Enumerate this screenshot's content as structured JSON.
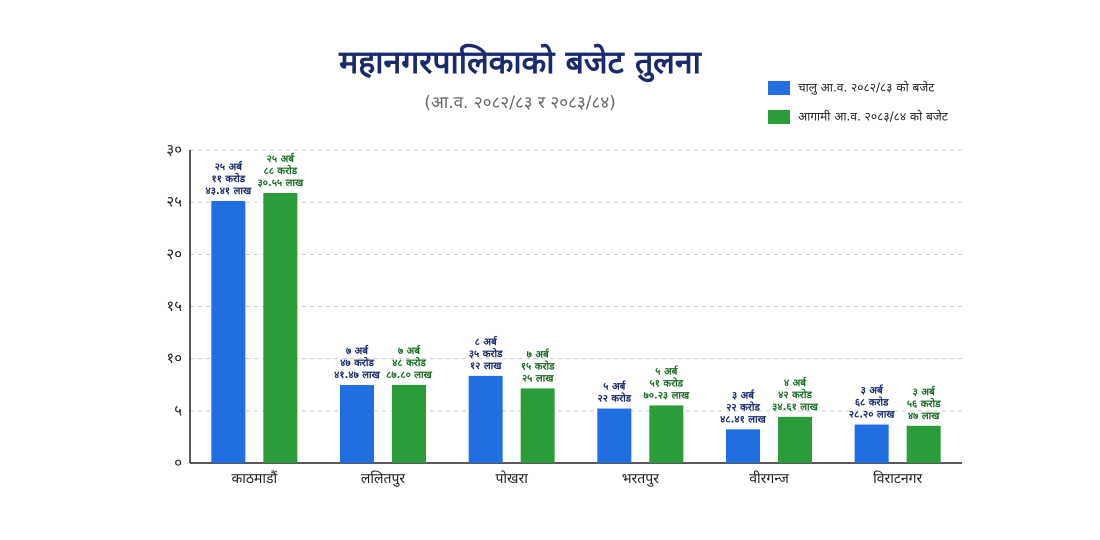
{
  "chart_data": {
    "type": "bar",
    "title": "महानगरपालिकाको बजेट तुलना",
    "subtitle": "(आ.व. २०८२/८३ र २०८३/८४)",
    "categories": [
      "काठमाडौं",
      "ललितपुर",
      "पोखरा",
      "भरतपुर",
      "वीरगन्ज",
      "विराटनगर"
    ],
    "series": [
      {
        "name": "चालु आ.व. २०८२/८३ को बजेट",
        "color": "#1f6fe0",
        "label_color": "#1a2a6c",
        "values": [
          25.114341,
          7.474147,
          8.3512,
          5.22,
          3.224841,
          3.6828
        ],
        "value_labels": [
          [
            "२५ अर्ब",
            "११ करोड",
            "४३.४१ लाख"
          ],
          [
            "७ अर्ब",
            "४७ करोड",
            "४१.४७ लाख"
          ],
          [
            "८ अर्ब",
            "३५ करोड",
            "१२ लाख"
          ],
          [
            "५ अर्ब",
            "२२ करोड"
          ],
          [
            "३ अर्ब",
            "२२ करोड",
            "४८.४१ लाख"
          ],
          [
            "३ अर्ब",
            "६८ करोड",
            "२८.२० लाख"
          ]
        ]
      },
      {
        "name": "आगामी आ.व. २०८३/८४ को बजेट",
        "color": "#2a9d3a",
        "label_color": "#1e6b28",
        "values": [
          25.883055,
          7.48878,
          7.1525,
          5.517023,
          4.423461,
          3.5647
        ],
        "value_labels": [
          [
            "२५ अर्ब",
            "८८ करोड",
            "३०.५५ लाख"
          ],
          [
            "७ अर्ब",
            "४८ करोड",
            "८७.८० लाख"
          ],
          [
            "७ अर्ब",
            "१५ करोड",
            "२५ लाख"
          ],
          [
            "५ अर्ब",
            "५१ करोड",
            "७०.२३ लाख"
          ],
          [
            "४ अर्ब",
            "४२ करोड",
            "३४.६१ लाख"
          ],
          [
            "३ अर्ब",
            "५६ करोड",
            "४७ लाख"
          ]
        ]
      }
    ],
    "ylim": [
      0,
      30
    ],
    "yticks": [
      {
        "value": 0,
        "label": "०"
      },
      {
        "value": 5,
        "label": "५"
      },
      {
        "value": 10,
        "label": "१०"
      },
      {
        "value": 15,
        "label": "१५"
      },
      {
        "value": 20,
        "label": "२०"
      },
      {
        "value": 25,
        "label": "२५"
      },
      {
        "value": 30,
        "label": "३०"
      }
    ],
    "grid": true,
    "legend": "top-right"
  }
}
